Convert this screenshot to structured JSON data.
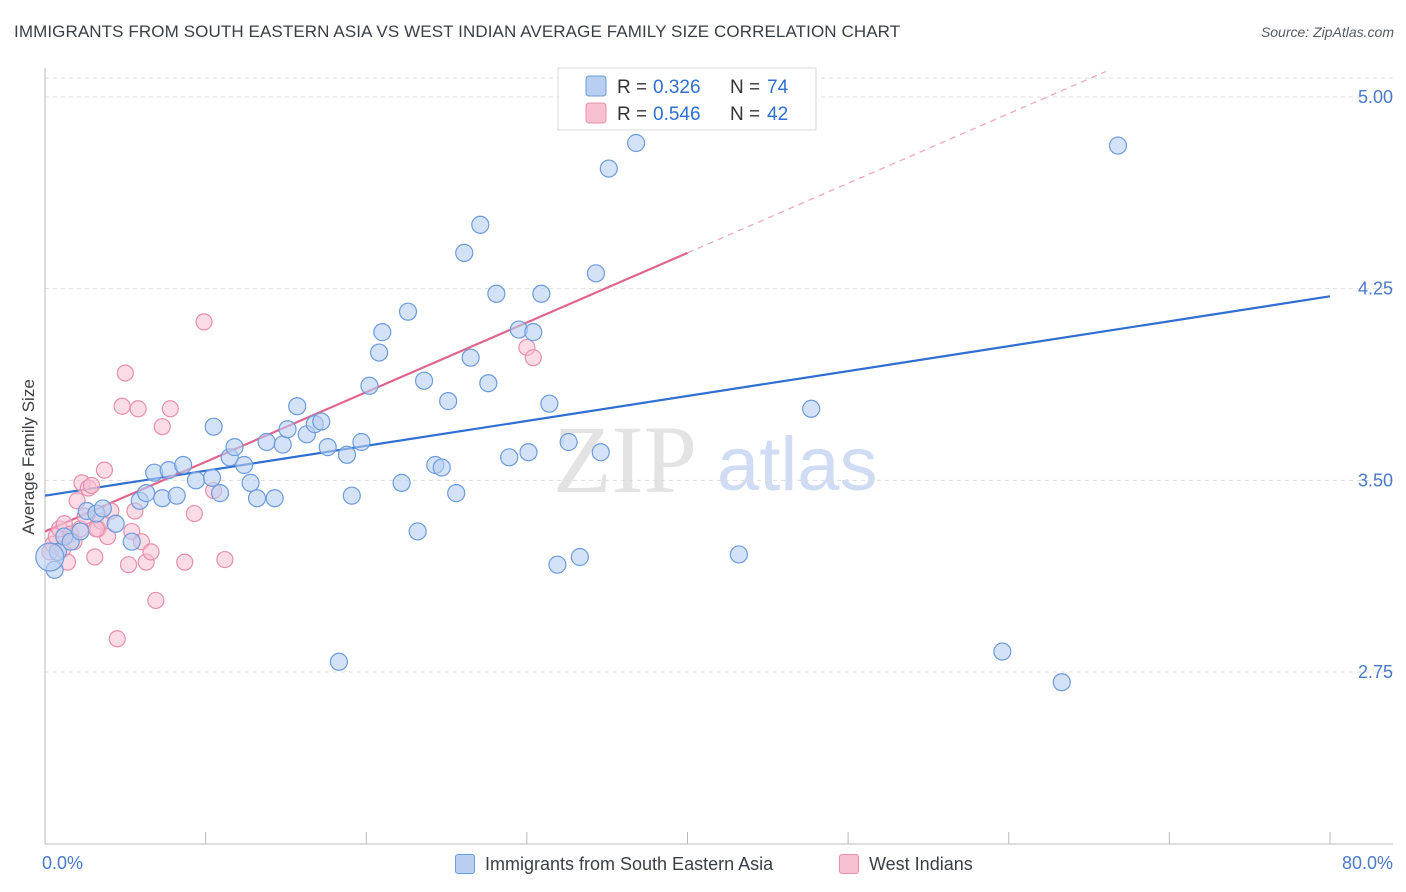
{
  "title": "IMMIGRANTS FROM SOUTH EASTERN ASIA VS WEST INDIAN AVERAGE FAMILY SIZE CORRELATION CHART",
  "source": "Source: ZipAtlas.com",
  "watermark": {
    "zip": "ZIP",
    "atlas": "atlas"
  },
  "colors": {
    "blue_fill": "#b8cff2",
    "blue_stroke": "#6c9bdc",
    "blue_line": "#2e6fd1",
    "pink_fill": "#f7c0d1",
    "pink_stroke": "#e78fab",
    "pink_line": "#e0658e",
    "tick_text": "#4a79c9",
    "grid": "#dcdcdc"
  },
  "legend_box": {
    "rows": [
      {
        "r_label": "R =",
        "r_value": "0.326",
        "n_label": "N =",
        "n_value": "74"
      },
      {
        "r_label": "R =",
        "r_value": "0.546",
        "n_label": "N =",
        "n_value": "42"
      }
    ]
  },
  "bottom_legend": [
    "Immigrants from South Eastern Asia",
    "West Indians"
  ],
  "chart_data": {
    "type": "scatter",
    "title": "IMMIGRANTS FROM SOUTH EASTERN ASIA VS WEST INDIAN AVERAGE FAMILY SIZE CORRELATION CHART",
    "xlabel": "",
    "ylabel": "Average Family Size",
    "xlim": [
      0,
      80
    ],
    "ylim": [
      2.0,
      5.1
    ],
    "x_tick_labels": [
      "0.0%",
      "80.0%"
    ],
    "y_ticks": [
      2.75,
      3.5,
      4.25,
      5.0
    ],
    "y_tick_labels": [
      "2.75",
      "3.50",
      "4.25",
      "5.00"
    ],
    "grid": true,
    "legend_position": "top-center",
    "series": [
      {
        "name": "Immigrants from South Eastern Asia",
        "R": 0.326,
        "N": 74,
        "trend": {
          "x0": 0,
          "y0": 3.44,
          "x1": 80,
          "y1": 4.22,
          "solid_to": 80
        },
        "points": [
          [
            0.6,
            3.15
          ],
          [
            0.8,
            3.22
          ],
          [
            1.2,
            3.28
          ],
          [
            1.6,
            3.26
          ],
          [
            2.2,
            3.3
          ],
          [
            2.6,
            3.38
          ],
          [
            3.2,
            3.37
          ],
          [
            3.6,
            3.39
          ],
          [
            4.4,
            3.33
          ],
          [
            5.4,
            3.26
          ],
          [
            5.9,
            3.42
          ],
          [
            6.3,
            3.45
          ],
          [
            6.8,
            3.53
          ],
          [
            7.3,
            3.43
          ],
          [
            7.7,
            3.54
          ],
          [
            8.2,
            3.44
          ],
          [
            8.6,
            3.56
          ],
          [
            9.4,
            3.5
          ],
          [
            10.4,
            3.51
          ],
          [
            10.5,
            3.71
          ],
          [
            10.9,
            3.45
          ],
          [
            11.5,
            3.59
          ],
          [
            11.8,
            3.63
          ],
          [
            12.4,
            3.56
          ],
          [
            12.8,
            3.49
          ],
          [
            13.2,
            3.43
          ],
          [
            13.8,
            3.65
          ],
          [
            14.3,
            3.43
          ],
          [
            14.8,
            3.64
          ],
          [
            15.1,
            3.7
          ],
          [
            15.7,
            3.79
          ],
          [
            16.3,
            3.68
          ],
          [
            16.8,
            3.72
          ],
          [
            17.2,
            3.73
          ],
          [
            17.6,
            3.63
          ],
          [
            18.3,
            2.79
          ],
          [
            18.8,
            3.6
          ],
          [
            19.1,
            3.44
          ],
          [
            19.7,
            3.65
          ],
          [
            20.2,
            3.87
          ],
          [
            20.8,
            4.0
          ],
          [
            21.0,
            4.08
          ],
          [
            22.2,
            3.49
          ],
          [
            22.6,
            4.16
          ],
          [
            23.2,
            3.3
          ],
          [
            23.6,
            3.89
          ],
          [
            24.3,
            3.56
          ],
          [
            24.7,
            3.55
          ],
          [
            25.1,
            3.81
          ],
          [
            25.6,
            3.45
          ],
          [
            26.1,
            4.39
          ],
          [
            26.5,
            3.98
          ],
          [
            27.1,
            4.5
          ],
          [
            27.6,
            3.88
          ],
          [
            28.1,
            4.23
          ],
          [
            28.9,
            3.59
          ],
          [
            29.5,
            4.09
          ],
          [
            30.1,
            3.61
          ],
          [
            30.4,
            4.08
          ],
          [
            30.9,
            4.23
          ],
          [
            31.4,
            3.8
          ],
          [
            31.9,
            3.17
          ],
          [
            32.6,
            3.65
          ],
          [
            33.3,
            3.2
          ],
          [
            34.3,
            4.31
          ],
          [
            34.6,
            3.61
          ],
          [
            35.1,
            4.72
          ],
          [
            36.8,
            4.82
          ],
          [
            43.2,
            3.21
          ],
          [
            47.7,
            3.78
          ],
          [
            59.6,
            2.83
          ],
          [
            63.3,
            2.71
          ],
          [
            66.8,
            4.81
          ],
          [
            0.3,
            3.2
          ]
        ]
      },
      {
        "name": "West Indians",
        "R": 0.546,
        "N": 42,
        "trend": {
          "x0": 0,
          "y0": 3.3,
          "x1": 80,
          "y1": 5.48,
          "solid_to": 40
        },
        "points": [
          [
            0.3,
            3.22
          ],
          [
            0.5,
            3.25
          ],
          [
            0.7,
            3.28
          ],
          [
            0.9,
            3.31
          ],
          [
            1.1,
            3.23
          ],
          [
            1.2,
            3.33
          ],
          [
            1.4,
            3.18
          ],
          [
            1.6,
            3.29
          ],
          [
            1.8,
            3.26
          ],
          [
            2.0,
            3.42
          ],
          [
            2.2,
            3.31
          ],
          [
            2.3,
            3.49
          ],
          [
            2.5,
            3.36
          ],
          [
            2.7,
            3.47
          ],
          [
            2.9,
            3.48
          ],
          [
            3.1,
            3.2
          ],
          [
            3.3,
            3.31
          ],
          [
            3.5,
            3.34
          ],
          [
            3.7,
            3.54
          ],
          [
            3.9,
            3.28
          ],
          [
            4.1,
            3.38
          ],
          [
            4.5,
            2.88
          ],
          [
            4.8,
            3.79
          ],
          [
            5.0,
            3.92
          ],
          [
            5.2,
            3.17
          ],
          [
            5.4,
            3.3
          ],
          [
            5.6,
            3.38
          ],
          [
            5.8,
            3.78
          ],
          [
            6.0,
            3.26
          ],
          [
            6.3,
            3.18
          ],
          [
            6.6,
            3.22
          ],
          [
            6.9,
            3.03
          ],
          [
            7.3,
            3.71
          ],
          [
            7.8,
            3.78
          ],
          [
            8.7,
            3.18
          ],
          [
            9.3,
            3.37
          ],
          [
            9.9,
            4.12
          ],
          [
            10.5,
            3.46
          ],
          [
            11.2,
            3.19
          ],
          [
            30.0,
            4.02
          ],
          [
            30.4,
            3.98
          ],
          [
            3.2,
            3.31
          ]
        ]
      }
    ]
  }
}
